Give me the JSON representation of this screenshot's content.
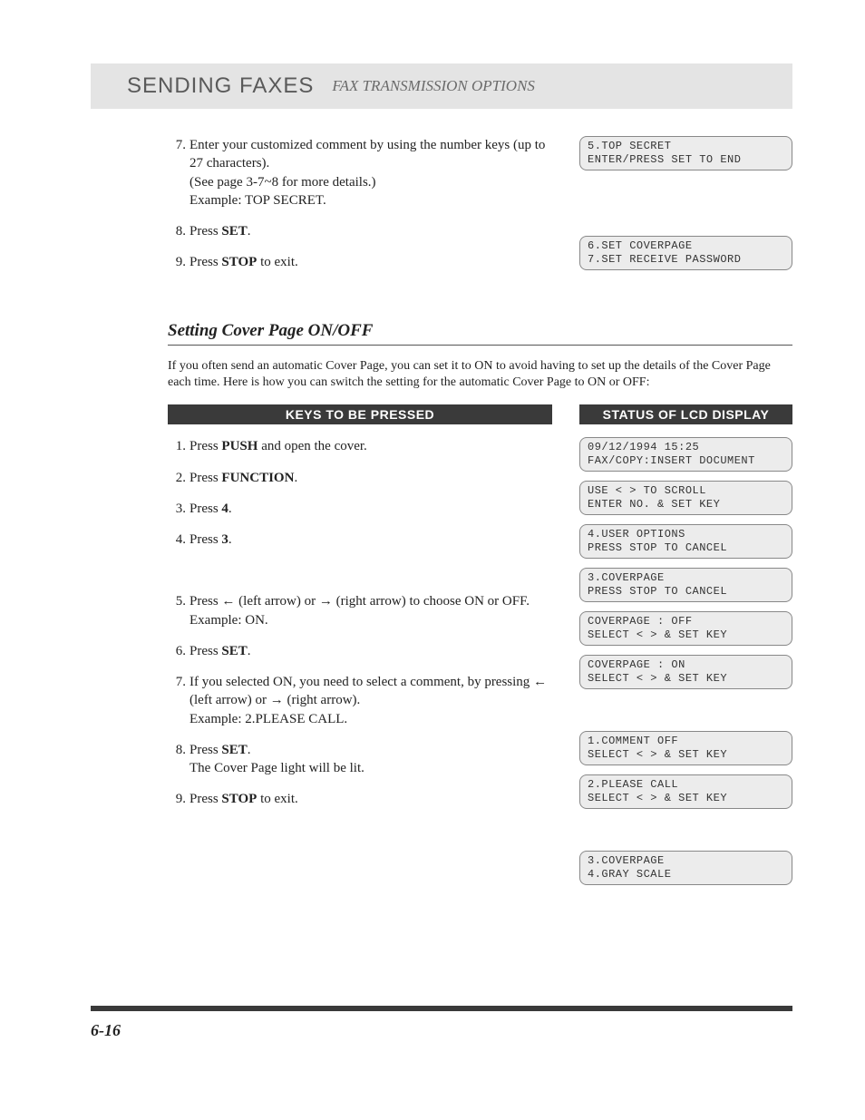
{
  "header": {
    "title": "SENDING FAXES",
    "subtitle": "FAX TRANSMISSION OPTIONS"
  },
  "top_steps": [
    {
      "num": "7.",
      "lines": [
        "Enter your customized comment by using the number keys (up to 27 characters).",
        "(See page 3-7~8 for more details.)",
        "Example: TOP SECRET."
      ],
      "lcd": "5.TOP SECRET\nENTER/PRESS SET TO END"
    },
    {
      "num": "8.",
      "lines": [
        "Press <b>SET</b>."
      ],
      "lcd": "6.SET COVERPAGE\n7.SET RECEIVE PASSWORD"
    },
    {
      "num": "9.",
      "lines": [
        "Press <b>STOP</b> to exit."
      ],
      "lcd": null
    }
  ],
  "section": {
    "title": "Setting Cover Page ON/OFF",
    "intro": "If you often send an automatic Cover Page, you can set it to ON to avoid having to set up the details of the Cover Page each time. Here is how you can switch the setting for the automatic Cover Page to ON or OFF:"
  },
  "col_headers": {
    "left": "KEYS TO BE PRESSED",
    "right": "STATUS OF LCD DISPLAY"
  },
  "steps": [
    {
      "num": "1.",
      "html": "Press <b>PUSH</b> and open the cover."
    },
    {
      "num": "2.",
      "html": "Press <b>FUNCTION</b>."
    },
    {
      "num": "3.",
      "html": "Press <b>4</b>."
    },
    {
      "num": "4.",
      "html": "Press <b>3</b>."
    },
    {
      "num": "",
      "html": ""
    },
    {
      "num": "5.",
      "html": "Press <span class='arrow'>←</span> (left arrow) or <span class='arrow'>→</span> (right arrow) to choose ON or OFF.<br>Example: ON."
    },
    {
      "num": "6.",
      "html": "Press <b>SET</b>."
    },
    {
      "num": "7.",
      "html": "If you selected ON, you need to select a comment, by pressing <span class='arrow'>←</span> (left arrow) or <span class='arrow'>→</span> (right arrow).<br>Example: 2.PLEASE CALL."
    },
    {
      "num": "8.",
      "html": "Press <b>SET</b>.<br>The Cover Page light will be lit."
    },
    {
      "num": "9.",
      "html": "Press <b>STOP</b> to exit."
    }
  ],
  "lcds": [
    "09/12/1994 15:25\nFAX/COPY:INSERT DOCUMENT",
    "USE < > TO SCROLL\nENTER NO. & SET KEY",
    "4.USER OPTIONS\nPRESS STOP TO CANCEL",
    "3.COVERPAGE\nPRESS STOP TO CANCEL",
    "COVERPAGE : OFF\nSELECT < > & SET KEY",
    "COVERPAGE : ON\nSELECT < > & SET KEY",
    "1.COMMENT OFF\nSELECT < > & SET KEY",
    "2.PLEASE CALL\nSELECT < > & SET KEY",
    "3.COVERPAGE\n4.GRAY SCALE"
  ],
  "lcd_layout": [
    {
      "type": "lcd",
      "i": 0
    },
    {
      "type": "lcd",
      "i": 1
    },
    {
      "type": "lcd",
      "i": 2
    },
    {
      "type": "lcd",
      "i": 3
    },
    {
      "type": "lcd",
      "i": 4
    },
    {
      "type": "lcd",
      "i": 5
    },
    {
      "type": "spacer"
    },
    {
      "type": "lcd",
      "i": 6
    },
    {
      "type": "lcd",
      "i": 7
    },
    {
      "type": "spacer"
    },
    {
      "type": "lcd",
      "i": 8
    }
  ],
  "page_number": "6-16",
  "colors": {
    "header_bg": "#e4e4e4",
    "dark_bar": "#3a3a3a",
    "lcd_bg": "#ececec",
    "lcd_border": "#888888"
  }
}
